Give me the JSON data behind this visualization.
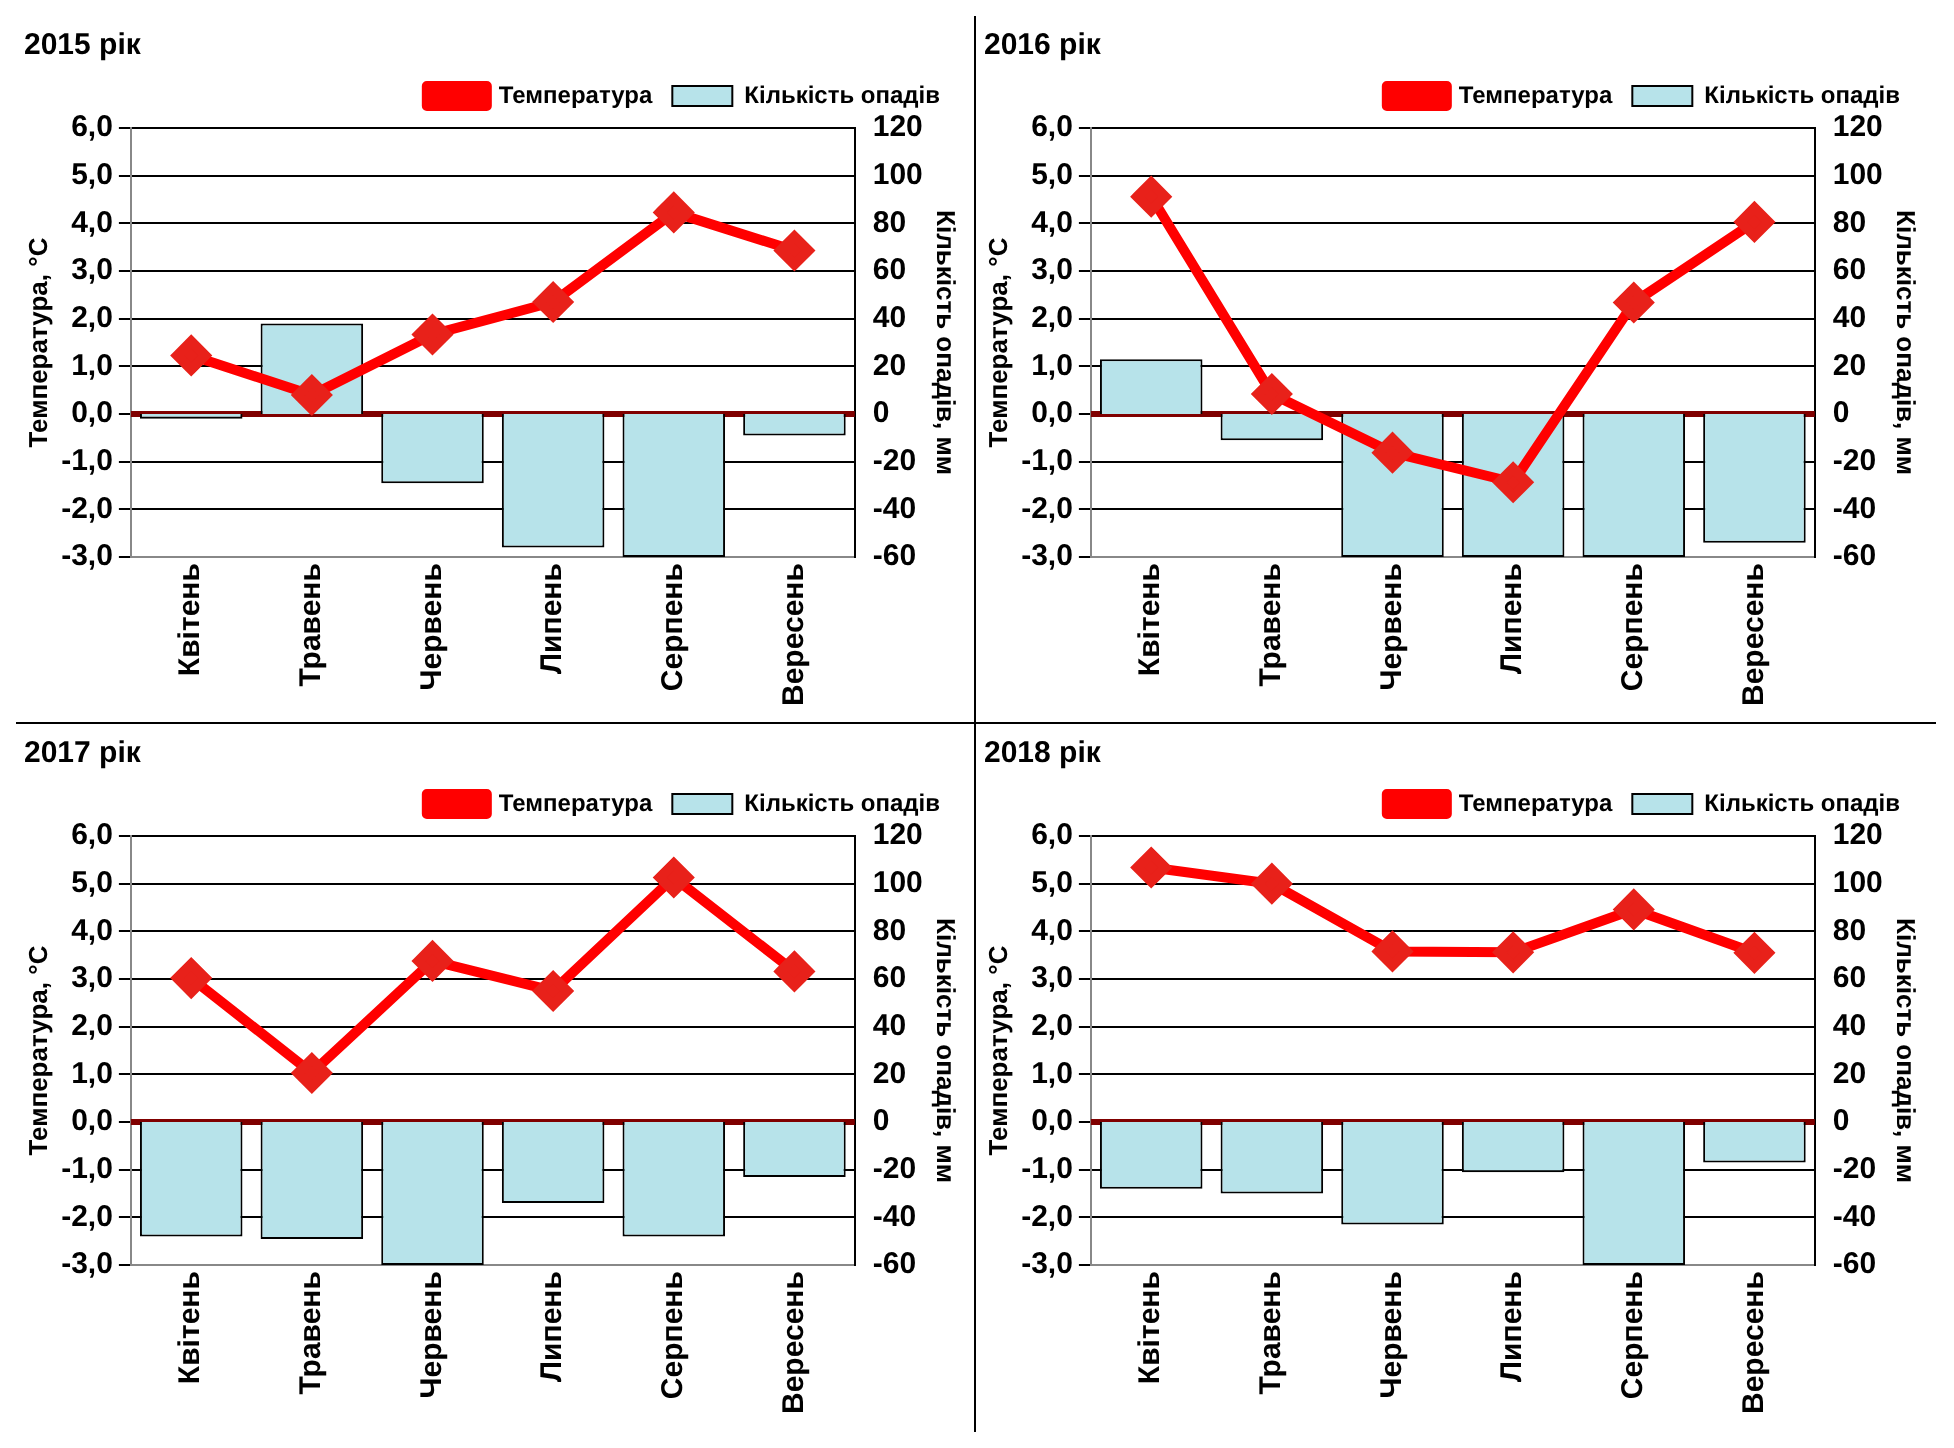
{
  "chart_data": [
    {
      "type": "bar",
      "title": "2015 рік",
      "ylabel": "Температура, °C",
      "y2label": "Кількість опадів, мм",
      "categories": [
        "Квітень",
        "Травень",
        "Червень",
        "Липень",
        "Серпень",
        "Вересень"
      ],
      "series": [
        {
          "name": "Кількість опадів",
          "axis": "y2",
          "color": "#b7e3ea",
          "values": [
            -2,
            38,
            -29,
            -56,
            -60,
            -9
          ]
        },
        {
          "name": "Температура",
          "type": "line",
          "axis": "y",
          "color": "#ff0000",
          "values": [
            1.23,
            0.4,
            1.67,
            2.35,
            4.23,
            3.43
          ]
        }
      ],
      "ylim": [
        -3,
        6
      ],
      "yticks": [
        {
          "value": -3,
          "label": "-3,0"
        },
        {
          "value": -2,
          "label": "-2,0"
        },
        {
          "value": -1,
          "label": "-1,0"
        },
        {
          "value": 0,
          "label": "0,0"
        },
        {
          "value": 1,
          "label": "1,0"
        },
        {
          "value": 2,
          "label": "2,0"
        },
        {
          "value": 3,
          "label": "3,0"
        },
        {
          "value": 4,
          "label": "4,0"
        },
        {
          "value": 5,
          "label": "5,0"
        },
        {
          "value": 6,
          "label": "6,0"
        }
      ],
      "y2lim": [
        -60,
        120
      ],
      "y2ticks": [
        -60,
        -40,
        -20,
        0,
        20,
        40,
        60,
        80,
        100,
        120
      ],
      "ref_lines": [
        {
          "axis": "y",
          "value": 0,
          "color": "#800000"
        }
      ],
      "grid": "y",
      "legend": "top right",
      "marker": "diamond",
      "line_style": "solid"
    },
    {
      "type": "bar",
      "title": "2016 рік",
      "ylabel": "Температура, °C",
      "y2label": "Кількість опадів, мм",
      "categories": [
        "Квітень",
        "Травень",
        "Червень",
        "Липень",
        "Серпень",
        "Вересень"
      ],
      "series": [
        {
          "name": "Кількість опадів",
          "axis": "y2",
          "color": "#b7e3ea",
          "values": [
            23,
            -11,
            -60,
            -60,
            -60,
            -54
          ]
        },
        {
          "name": "Температура",
          "type": "line",
          "axis": "y",
          "color": "#ff0000",
          "values": [
            4.56,
            0.42,
            -0.81,
            -1.43,
            2.34,
            4.03
          ]
        }
      ],
      "ylim": [
        -3,
        6
      ],
      "yticks": [
        {
          "value": -3,
          "label": "-3,0"
        },
        {
          "value": -2,
          "label": "-2,0"
        },
        {
          "value": -1,
          "label": "-1,0"
        },
        {
          "value": 0,
          "label": "0,0"
        },
        {
          "value": 1,
          "label": "1,0"
        },
        {
          "value": 2,
          "label": "2,0"
        },
        {
          "value": 3,
          "label": "3,0"
        },
        {
          "value": 4,
          "label": "4,0"
        },
        {
          "value": 5,
          "label": "5,0"
        },
        {
          "value": 6,
          "label": "6,0"
        }
      ],
      "y2lim": [
        -60,
        120
      ],
      "y2ticks": [
        -60,
        -40,
        -20,
        0,
        20,
        40,
        60,
        80,
        100,
        120
      ],
      "ref_lines": [
        {
          "axis": "y",
          "value": 0,
          "color": "#800000"
        }
      ],
      "grid": "y",
      "legend": "top right",
      "marker": "diamond",
      "line_style": "solid"
    },
    {
      "type": "bar",
      "title": "2017 рік",
      "ylabel": "Температура, °C",
      "y2label": "Кількість опадів, мм",
      "categories": [
        "Квітень",
        "Травень",
        "Червень",
        "Липень",
        "Серпень",
        "Вересень"
      ],
      "series": [
        {
          "name": "Кількість опадів",
          "axis": "y2",
          "color": "#b7e3ea",
          "values": [
            -48,
            -49,
            -60,
            -34,
            -48,
            -23
          ]
        },
        {
          "name": "Температура",
          "type": "line",
          "axis": "y",
          "color": "#ff0000",
          "values": [
            3.02,
            1.03,
            3.38,
            2.75,
            5.13,
            3.16
          ]
        }
      ],
      "ylim": [
        -3,
        6
      ],
      "yticks": [
        {
          "value": -3,
          "label": "-3,0"
        },
        {
          "value": -2,
          "label": "-2,0"
        },
        {
          "value": -1,
          "label": "-1,0"
        },
        {
          "value": 0,
          "label": "0,0"
        },
        {
          "value": 1,
          "label": "1,0"
        },
        {
          "value": 2,
          "label": "2,0"
        },
        {
          "value": 3,
          "label": "3,0"
        },
        {
          "value": 4,
          "label": "4,0"
        },
        {
          "value": 5,
          "label": "5,0"
        },
        {
          "value": 6,
          "label": "6,0"
        }
      ],
      "y2lim": [
        -60,
        120
      ],
      "y2ticks": [
        -60,
        -40,
        -20,
        0,
        20,
        40,
        60,
        80,
        100,
        120
      ],
      "ref_lines": [
        {
          "axis": "y",
          "value": 0,
          "color": "#800000"
        }
      ],
      "grid": "y",
      "legend": "top right",
      "marker": "diamond",
      "line_style": "solid"
    },
    {
      "type": "bar",
      "title": "2018 рік",
      "ylabel": "Температура, °C",
      "y2label": "Кількість опадів, мм",
      "categories": [
        "Квітень",
        "Травень",
        "Червень",
        "Липень",
        "Серпень",
        "Вересень"
      ],
      "series": [
        {
          "name": "Кількість опадів",
          "axis": "y2",
          "color": "#b7e3ea",
          "values": [
            -28,
            -30,
            -43,
            -21,
            -60,
            -17
          ]
        },
        {
          "name": "Температура",
          "type": "line",
          "axis": "y",
          "color": "#ff0000",
          "values": [
            5.34,
            5.0,
            3.58,
            3.56,
            4.46,
            3.55
          ]
        }
      ],
      "ylim": [
        -3,
        6
      ],
      "yticks": [
        {
          "value": -3,
          "label": "-3,0"
        },
        {
          "value": -2,
          "label": "-2,0"
        },
        {
          "value": -1,
          "label": "-1,0"
        },
        {
          "value": 0,
          "label": "0,0"
        },
        {
          "value": 1,
          "label": "1,0"
        },
        {
          "value": 2,
          "label": "2,0"
        },
        {
          "value": 3,
          "label": "3,0"
        },
        {
          "value": 4,
          "label": "4,0"
        },
        {
          "value": 5,
          "label": "5,0"
        },
        {
          "value": 6,
          "label": "6,0"
        }
      ],
      "y2lim": [
        -60,
        120
      ],
      "y2ticks": [
        -60,
        -40,
        -20,
        0,
        20,
        40,
        60,
        80,
        100,
        120
      ],
      "ref_lines": [
        {
          "axis": "y",
          "value": 0,
          "color": "#800000"
        }
      ],
      "grid": "y",
      "legend": "top right",
      "marker": "diamond",
      "line_style": "solid"
    }
  ]
}
